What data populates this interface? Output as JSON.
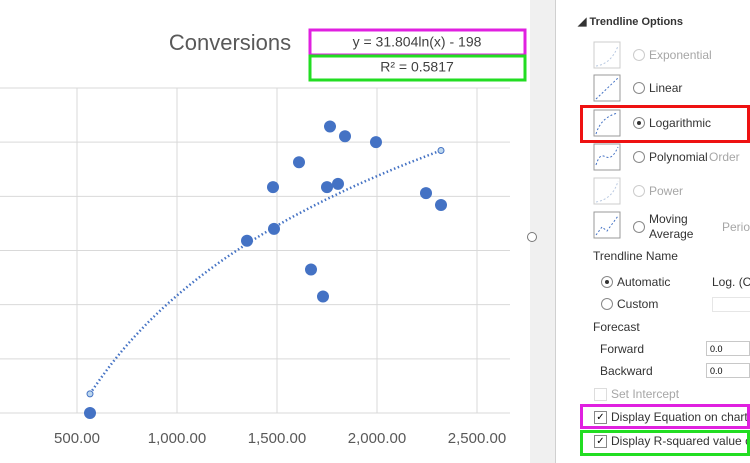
{
  "chart_data": {
    "type": "scatter",
    "title": "Conversions",
    "x": [
      565,
      1350,
      1485,
      1480,
      1610,
      1670,
      1730,
      1750,
      1765,
      1805,
      1840,
      1995,
      2245,
      2320
    ],
    "values": [
      0,
      31.8,
      34.0,
      41.7,
      46.3,
      26.5,
      21.5,
      41.7,
      52.9,
      42.3,
      51.1,
      50.0,
      40.6,
      38.4
    ],
    "color": "#4472c4",
    "xlim": [
      0,
      2665
    ],
    "ylim": [
      0,
      60
    ],
    "xticks": [
      {
        "value": 500,
        "label": "500.00"
      },
      {
        "value": 1000,
        "label": "1,000.00"
      },
      {
        "value": 1500,
        "label": "1,500.00"
      },
      {
        "value": 2000,
        "label": "2,000.00"
      },
      {
        "value": 2500,
        "label": "2,500.00"
      }
    ],
    "yticks": [
      0,
      10,
      20,
      30,
      40,
      50,
      60
    ],
    "grid": true,
    "trendline": {
      "type": "logarithmic",
      "coef": 31.804,
      "intercept": -198,
      "equation": "y = 31.804ln(x) - 198",
      "r_squared_label": "R² = 0.5817"
    }
  },
  "panel": {
    "title": "Trendline Options",
    "options": [
      "Exponential",
      "Linear",
      "Logarithmic",
      "Polynomial",
      "Power",
      "Moving Average"
    ],
    "order_label": "Order",
    "period_label": "Period",
    "name_heading": "Trendline Name",
    "automatic": "Automatic",
    "automatic_value": "Log. (Co",
    "custom": "Custom",
    "forecast": "Forecast",
    "forward": "Forward",
    "forward_value": "0.0",
    "backward": "Backward",
    "backward_value": "0.0",
    "set_intercept": "Set Intercept",
    "display_equation": "Display Equation on chart",
    "display_r2": "Display R-squared value on"
  }
}
